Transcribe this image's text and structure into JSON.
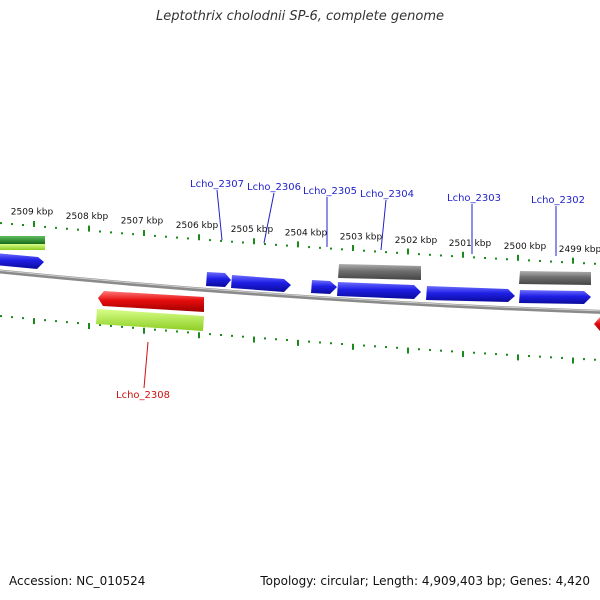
{
  "title": "Leptothrix cholodnii SP-6, complete genome",
  "footer": {
    "accession": "Accession: NC_010524",
    "meta": "Topology: circular; Length: 4,909,403 bp; Genes: 4,420"
  },
  "colors": {
    "forward_gene": "#1f1fe6",
    "reverse_gene": "#e60d0d",
    "rna_gray": "#6e6e6e",
    "green_dark": "#2a8a2a",
    "green_light": "#a8e63a",
    "backbone": "#8a8a8a",
    "tick": "#1a8a1a",
    "label_blue": "#1f1fcc",
    "label_red": "#cc1111"
  },
  "ruler": {
    "unit": "kbp",
    "ticks": [
      {
        "label": "2509 kbp"
      },
      {
        "label": "2508 kbp"
      },
      {
        "label": "2507 kbp"
      },
      {
        "label": "2506 kbp"
      },
      {
        "label": "2505 kbp"
      },
      {
        "label": "2504 kbp"
      },
      {
        "label": "2503 kbp"
      },
      {
        "label": "2502 kbp"
      },
      {
        "label": "2501 kbp"
      },
      {
        "label": "2500 kbp"
      },
      {
        "label": "2499 kbp"
      }
    ]
  },
  "gene_labels": [
    {
      "name": "Lcho_2307",
      "color": "#1f1fcc"
    },
    {
      "name": "Lcho_2306",
      "color": "#1f1fcc"
    },
    {
      "name": "Lcho_2305",
      "color": "#1f1fcc"
    },
    {
      "name": "Lcho_2304",
      "color": "#1f1fcc"
    },
    {
      "name": "Lcho_2303",
      "color": "#1f1fcc"
    },
    {
      "name": "Lcho_2302",
      "color": "#1f1fcc"
    },
    {
      "name": "Lcho_2308",
      "color": "#cc1111"
    }
  ]
}
